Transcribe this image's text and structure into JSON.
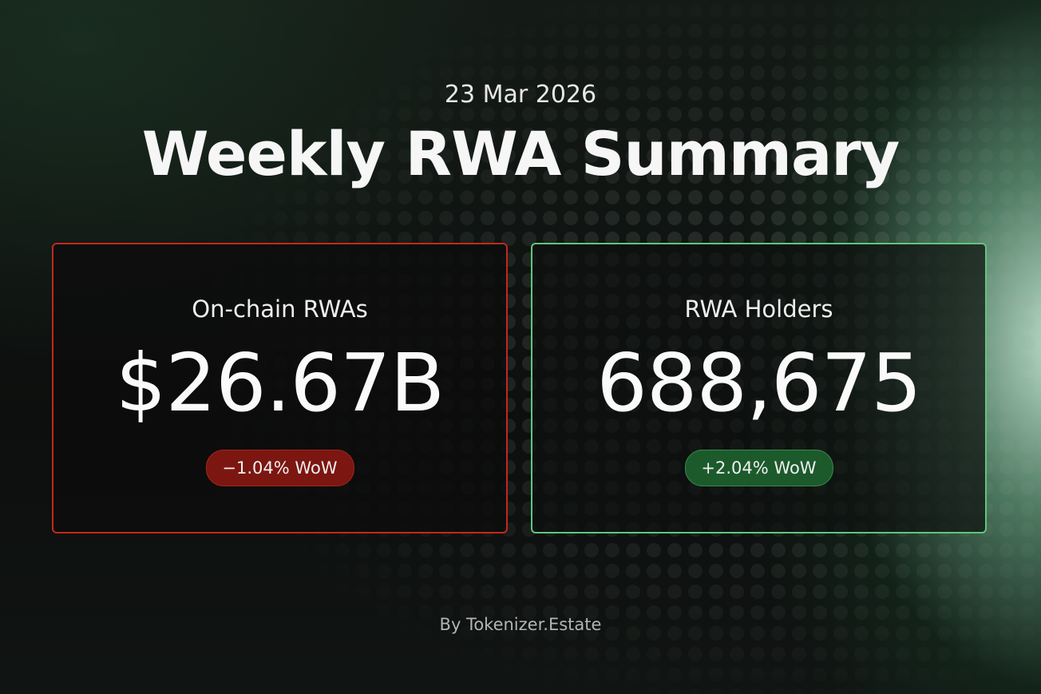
{
  "header": {
    "date": "23 Mar 2026",
    "title": "Weekly RWA Summary"
  },
  "cards": [
    {
      "label": "On-chain RWAs",
      "value": "$26.67B",
      "change": "−1.04% WoW"
    },
    {
      "label": "RWA Holders",
      "value": "688,675",
      "change": "+2.04% WoW"
    }
  ],
  "footer": "By Tokenizer.Estate"
}
